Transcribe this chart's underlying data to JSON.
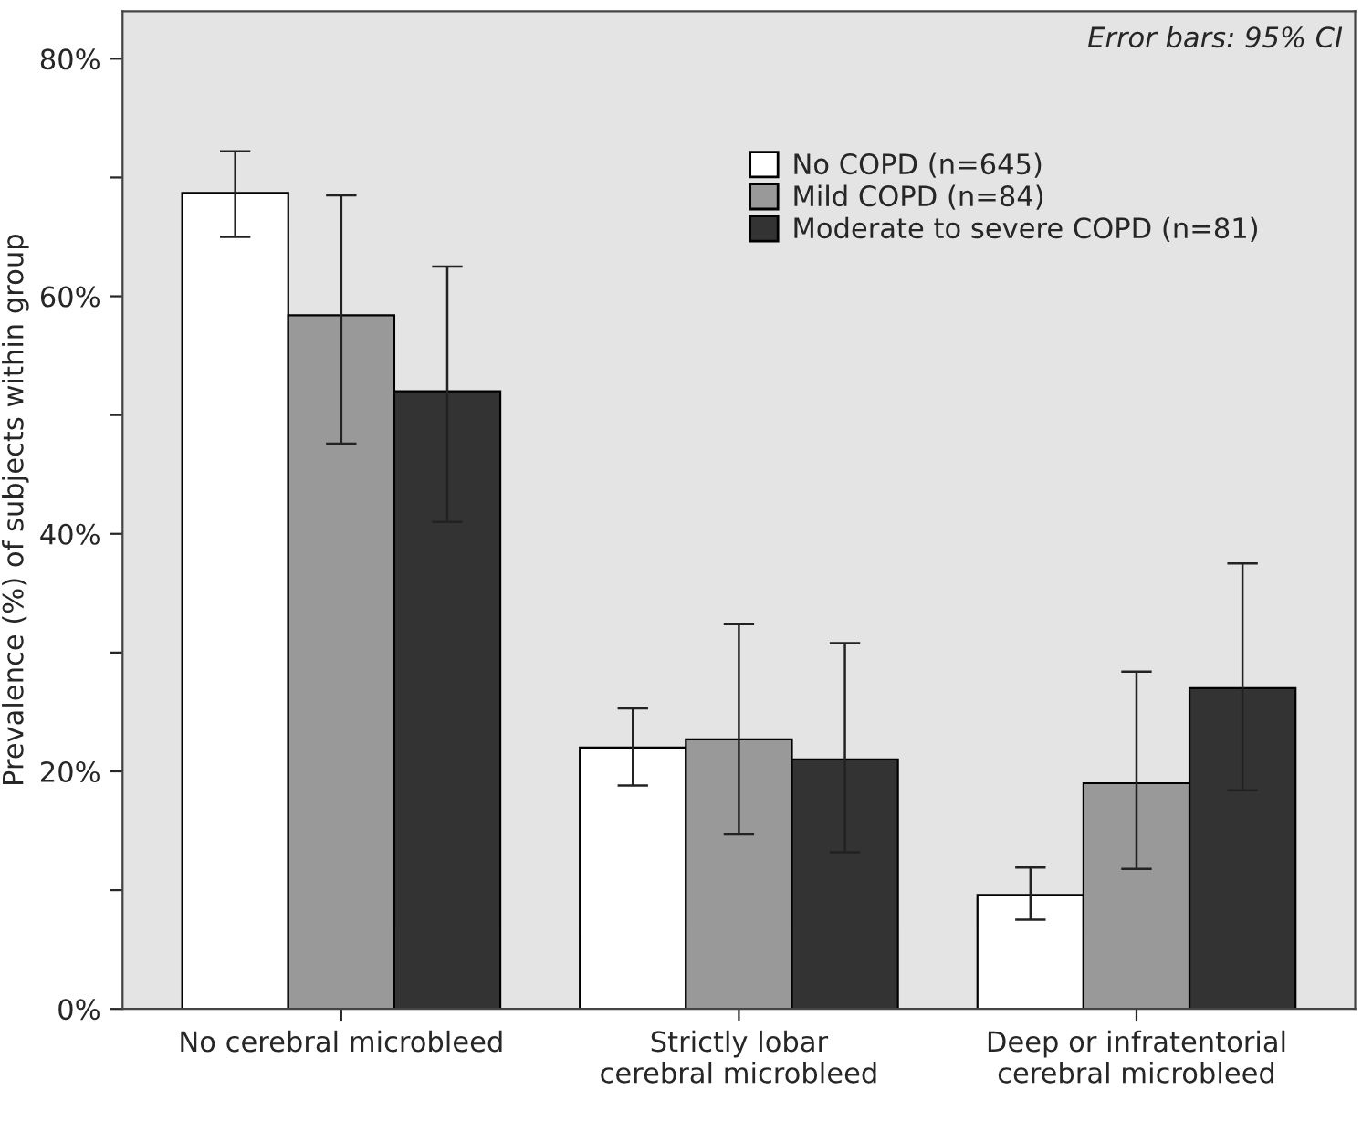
{
  "chart_data": {
    "type": "bar",
    "ylabel": "Prevalence (%) of subjects within group",
    "categories": [
      "No cerebral microbleed",
      "Strictly lobar\ncerebral microbleed",
      "Deep or infratentorial\ncerebral microbleed"
    ],
    "series": [
      {
        "name": "No COPD (n=645)",
        "color": "#ffffff",
        "values": [
          68.7,
          22.0,
          9.6
        ],
        "errors": [
          [
            65.0,
            72.2
          ],
          [
            18.8,
            25.3
          ],
          [
            7.5,
            11.9
          ]
        ]
      },
      {
        "name": "Mild COPD (n=84)",
        "color": "#999999",
        "values": [
          58.4,
          22.7,
          19.0
        ],
        "errors": [
          [
            47.6,
            68.5
          ],
          [
            14.7,
            32.4
          ],
          [
            11.8,
            28.4
          ]
        ]
      },
      {
        "name": "Moderate to severe COPD (n=81)",
        "color": "#333333",
        "values": [
          52.0,
          21.0,
          27.0
        ],
        "errors": [
          [
            41.0,
            62.5
          ],
          [
            13.2,
            30.8
          ],
          [
            18.4,
            37.5
          ]
        ]
      }
    ],
    "ylim": [
      0,
      84
    ],
    "yticks": [
      {
        "value": 0,
        "label": "0%"
      },
      {
        "value": 10,
        "label": null
      },
      {
        "value": 20,
        "label": "20%"
      },
      {
        "value": 30,
        "label": null
      },
      {
        "value": 40,
        "label": "40%"
      },
      {
        "value": 50,
        "label": null
      },
      {
        "value": 60,
        "label": "60%"
      },
      {
        "value": 70,
        "label": null
      },
      {
        "value": 80,
        "label": "80%"
      }
    ],
    "annotations": [
      "Error bars: 95% CI"
    ],
    "legend": "top",
    "grid": false
  }
}
